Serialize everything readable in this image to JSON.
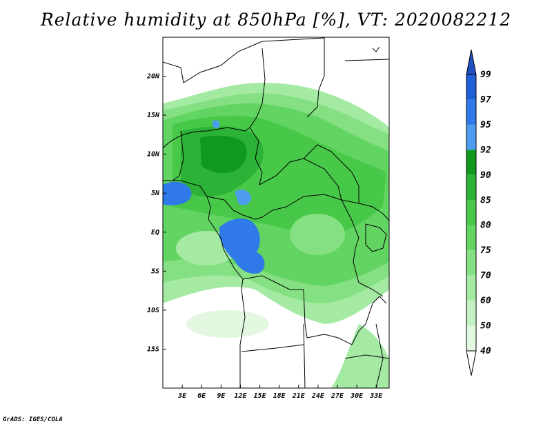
{
  "title": "Relative humidity at 850hPa [%], VT: 2020082212",
  "credit": "GrADS: IGES/COLA",
  "chart_data": {
    "type": "heatmap",
    "variable": "Relative humidity at 850hPa",
    "units": "%",
    "valid_time": "2020082212",
    "lon_range": [
      0,
      35
    ],
    "lat_range": [
      -20,
      25
    ],
    "x_ticks": [
      "3E",
      "6E",
      "9E",
      "12E",
      "15E",
      "18E",
      "21E",
      "24E",
      "27E",
      "30E",
      "33E"
    ],
    "x_tick_values": [
      3,
      6,
      9,
      12,
      15,
      18,
      21,
      24,
      27,
      30,
      33
    ],
    "y_ticks": [
      "20N",
      "15N",
      "10N",
      "5N",
      "EQ",
      "5S",
      "10S",
      "15S"
    ],
    "y_tick_values": [
      20,
      15,
      10,
      5,
      0,
      -5,
      -10,
      -15
    ],
    "colorbar": {
      "levels": [
        "99",
        "97",
        "95",
        "92",
        "90",
        "85",
        "80",
        "75",
        "70",
        "60",
        "50",
        "40"
      ],
      "level_values": [
        99,
        97,
        95,
        92,
        90,
        85,
        80,
        75,
        70,
        60,
        50,
        40
      ],
      "colors": [
        "#1f5fd6",
        "#2f7ae8",
        "#4e9cf0",
        "#0f9a1e",
        "#2cb236",
        "#48c848",
        "#62d462",
        "#84e082",
        "#a4eaa2",
        "#c4f2c2",
        "#e2f9e0",
        "#ffffff"
      ],
      "extends": "both",
      "top_extend_color": "#1e4ec0"
    }
  }
}
